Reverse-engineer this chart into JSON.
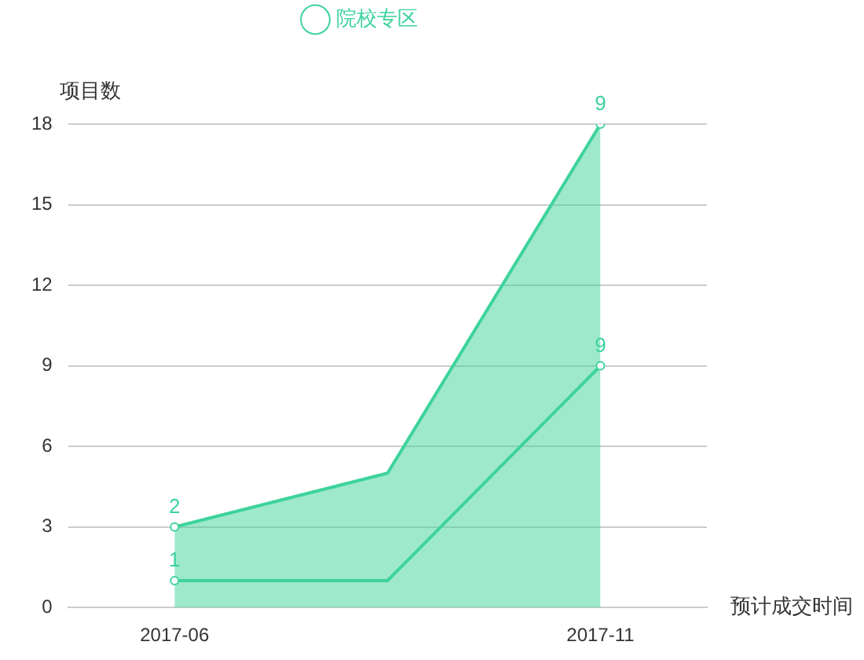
{
  "chart_data": {
    "type": "area",
    "stacked": true,
    "categories": [
      "2017-06",
      null,
      "2017-11"
    ],
    "series": [
      {
        "name": "院校专区",
        "color": "#3dd39c",
        "values": [
          1,
          1,
          9
        ],
        "value_labels": [
          "1",
          null,
          "9"
        ]
      },
      {
        "color": "#3dd39c",
        "values": [
          2,
          4,
          9
        ],
        "value_labels": [
          "2",
          null,
          "9"
        ]
      }
    ],
    "ylabel": "项目数",
    "xlabel": "预计成交时间",
    "ylim": [
      0,
      18
    ],
    "yticks": [
      0,
      3,
      6,
      9,
      12,
      15,
      18
    ],
    "grid": "y",
    "legend": "top",
    "marker": "circle"
  }
}
